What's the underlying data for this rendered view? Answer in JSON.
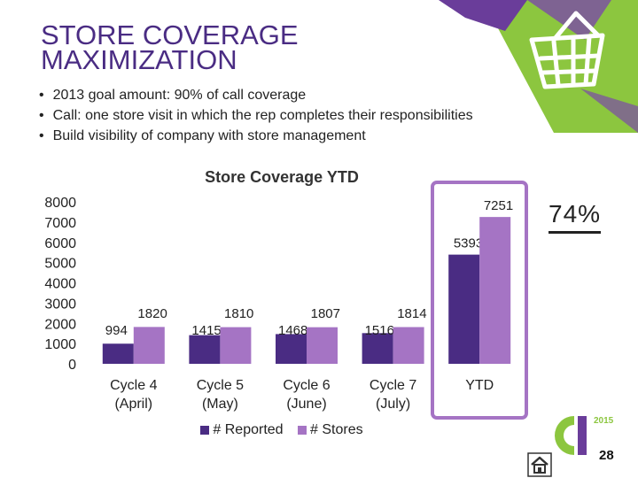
{
  "slide": {
    "title_line1": "STORE COVERAGE",
    "title_line2": "MAXIMIZATION",
    "bullets": [
      "2013 goal amount: 90% of call coverage",
      "Call: one store visit in which the rep completes their responsibilities",
      "Build visibility of company with store management"
    ],
    "callout": "74%",
    "logo_year": "2015",
    "page_number": "28",
    "colors": {
      "title": "#4a2c83",
      "reported": "#4a2c83",
      "stores": "#a574c4",
      "accent_green": "#8cc63f"
    },
    "icons": [
      "basket-icon",
      "home-icon",
      "logo-icon"
    ]
  },
  "chart_data": {
    "type": "bar",
    "title": "Store Coverage YTD",
    "categories": [
      [
        "Cycle 4",
        "(April)"
      ],
      [
        "Cycle 5",
        "(May)"
      ],
      [
        "Cycle 6",
        "(June)"
      ],
      [
        "Cycle 7",
        "(July)"
      ],
      [
        "YTD"
      ]
    ],
    "series": [
      {
        "name": "# Reported",
        "color": "#4a2c83",
        "values": [
          994,
          1415,
          1468,
          1516,
          5393
        ]
      },
      {
        "name": "# Stores",
        "color": "#a574c4",
        "values": [
          1820,
          1810,
          1807,
          1814,
          7251
        ]
      }
    ],
    "ylim": [
      0,
      8000
    ],
    "yticks": [
      "8000",
      "7000",
      "6000",
      "5000",
      "4000",
      "3000",
      "2000",
      "1000",
      "0"
    ],
    "grid": false,
    "legend": "bottom",
    "highlight_category": "YTD"
  }
}
